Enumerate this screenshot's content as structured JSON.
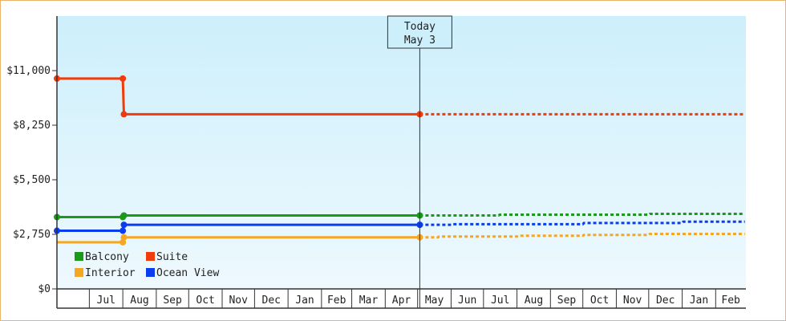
{
  "chart_data": {
    "type": "line",
    "style": "step",
    "y_axis": {
      "range": [
        0,
        13750
      ],
      "ticks": [
        {
          "value": 0,
          "label": "$0"
        },
        {
          "value": 2750,
          "label": "$2,750"
        },
        {
          "value": 5500,
          "label": "$5,500"
        },
        {
          "value": 8250,
          "label": "$8,250"
        },
        {
          "value": 11000,
          "label": "$11,000"
        }
      ]
    },
    "x_axis": {
      "range": [
        "2024-06-01",
        "2026-02-28"
      ],
      "months": [
        {
          "start": "2024-06-01",
          "end": "2024-07-01",
          "label": ""
        },
        {
          "start": "2024-07-01",
          "end": "2024-08-01",
          "label": "Jul"
        },
        {
          "start": "2024-08-01",
          "end": "2024-09-01",
          "label": "Aug"
        },
        {
          "start": "2024-09-01",
          "end": "2024-10-01",
          "label": "Sep"
        },
        {
          "start": "2024-10-01",
          "end": "2024-11-01",
          "label": "Oct"
        },
        {
          "start": "2024-11-01",
          "end": "2024-12-01",
          "label": "Nov"
        },
        {
          "start": "2024-12-01",
          "end": "2025-01-01",
          "label": "Dec"
        },
        {
          "start": "2025-01-01",
          "end": "2025-02-01",
          "label": "Jan"
        },
        {
          "start": "2025-02-01",
          "end": "2025-03-01",
          "label": "Feb"
        },
        {
          "start": "2025-03-01",
          "end": "2025-04-01",
          "label": "Mar"
        },
        {
          "start": "2025-04-01",
          "end": "2025-05-01",
          "label": "Apr"
        },
        {
          "start": "2025-05-01",
          "end": "2025-06-01",
          "label": "May"
        },
        {
          "start": "2025-06-01",
          "end": "2025-07-01",
          "label": "Jun"
        },
        {
          "start": "2025-07-01",
          "end": "2025-08-01",
          "label": "Jul"
        },
        {
          "start": "2025-08-01",
          "end": "2025-09-01",
          "label": "Aug"
        },
        {
          "start": "2025-09-01",
          "end": "2025-10-01",
          "label": "Sep"
        },
        {
          "start": "2025-10-01",
          "end": "2025-11-01",
          "label": "Oct"
        },
        {
          "start": "2025-11-01",
          "end": "2025-12-01",
          "label": "Nov"
        },
        {
          "start": "2025-12-01",
          "end": "2026-01-01",
          "label": "Dec"
        },
        {
          "start": "2026-01-01",
          "end": "2026-02-01",
          "label": "Jan"
        },
        {
          "start": "2026-02-01",
          "end": "2026-03-01",
          "label": "Feb"
        }
      ]
    },
    "today": {
      "date": "2025-05-03",
      "label_line1": "Today",
      "label_line2": "May 3"
    },
    "background": {
      "top_color": "#cdeffb",
      "bottom_color": "#eef9fe"
    },
    "grid": false,
    "legend": {
      "placement": "bottom-left",
      "items": [
        {
          "label": "Balcony",
          "color": "#1a9a1a"
        },
        {
          "label": "Suite",
          "color": "#f03c0c"
        },
        {
          "label": "Interior",
          "color": "#f5a623"
        },
        {
          "label": "Ocean View",
          "color": "#0a3cf0"
        }
      ]
    },
    "series": [
      {
        "name": "Suite",
        "color": "#f03c0c",
        "history": [
          [
            "2024-06-01",
            10600
          ],
          [
            "2024-08-01",
            10600
          ],
          [
            "2024-08-02",
            8800
          ],
          [
            "2025-05-03",
            8800
          ]
        ],
        "markers": [
          [
            "2024-06-01",
            10600
          ],
          [
            "2024-08-01",
            10600
          ],
          [
            "2024-08-02",
            8800
          ],
          [
            "2025-05-03",
            8800
          ]
        ],
        "forecast": [
          [
            "2025-05-03",
            8800
          ],
          [
            "2026-02-28",
            8800
          ]
        ]
      },
      {
        "name": "Balcony",
        "color": "#1a9a1a",
        "history": [
          [
            "2024-06-01",
            3620
          ],
          [
            "2024-08-01",
            3620
          ],
          [
            "2024-08-02",
            3700
          ],
          [
            "2025-05-03",
            3700
          ]
        ],
        "markers": [
          [
            "2024-06-01",
            3620
          ],
          [
            "2024-08-01",
            3620
          ],
          [
            "2024-08-02",
            3700
          ],
          [
            "2025-05-03",
            3700
          ]
        ],
        "forecast": [
          [
            "2025-05-03",
            3700
          ],
          [
            "2025-07-15",
            3700
          ],
          [
            "2025-07-16",
            3740
          ],
          [
            "2025-12-01",
            3740
          ],
          [
            "2025-12-02",
            3780
          ],
          [
            "2026-02-28",
            3780
          ]
        ]
      },
      {
        "name": "Ocean View",
        "color": "#0a3cf0",
        "history": [
          [
            "2024-06-01",
            2930
          ],
          [
            "2024-08-01",
            2930
          ],
          [
            "2024-08-02",
            3230
          ],
          [
            "2025-05-03",
            3230
          ]
        ],
        "markers": [
          [
            "2024-06-01",
            2930
          ],
          [
            "2024-08-01",
            2930
          ],
          [
            "2024-08-02",
            3230
          ],
          [
            "2025-05-03",
            3230
          ]
        ],
        "forecast": [
          [
            "2025-05-03",
            3230
          ],
          [
            "2025-06-01",
            3230
          ],
          [
            "2025-06-02",
            3260
          ],
          [
            "2025-10-01",
            3260
          ],
          [
            "2025-10-02",
            3320
          ],
          [
            "2026-01-01",
            3320
          ],
          [
            "2026-01-02",
            3390
          ],
          [
            "2026-02-28",
            3390
          ]
        ]
      },
      {
        "name": "Interior",
        "color": "#f5a623",
        "history": [
          [
            "2024-06-01",
            2350
          ],
          [
            "2024-08-01",
            2350
          ],
          [
            "2024-08-02",
            2600
          ],
          [
            "2025-05-03",
            2600
          ]
        ],
        "markers": [
          [
            "2024-08-01",
            2350
          ],
          [
            "2024-08-02",
            2600
          ],
          [
            "2025-05-03",
            2600
          ]
        ],
        "forecast": [
          [
            "2025-05-03",
            2600
          ],
          [
            "2025-05-20",
            2600
          ],
          [
            "2025-05-21",
            2640
          ],
          [
            "2025-08-01",
            2640
          ],
          [
            "2025-08-02",
            2680
          ],
          [
            "2025-10-01",
            2680
          ],
          [
            "2025-10-02",
            2720
          ],
          [
            "2025-12-01",
            2720
          ],
          [
            "2025-12-02",
            2770
          ],
          [
            "2026-02-28",
            2770
          ]
        ]
      }
    ]
  }
}
